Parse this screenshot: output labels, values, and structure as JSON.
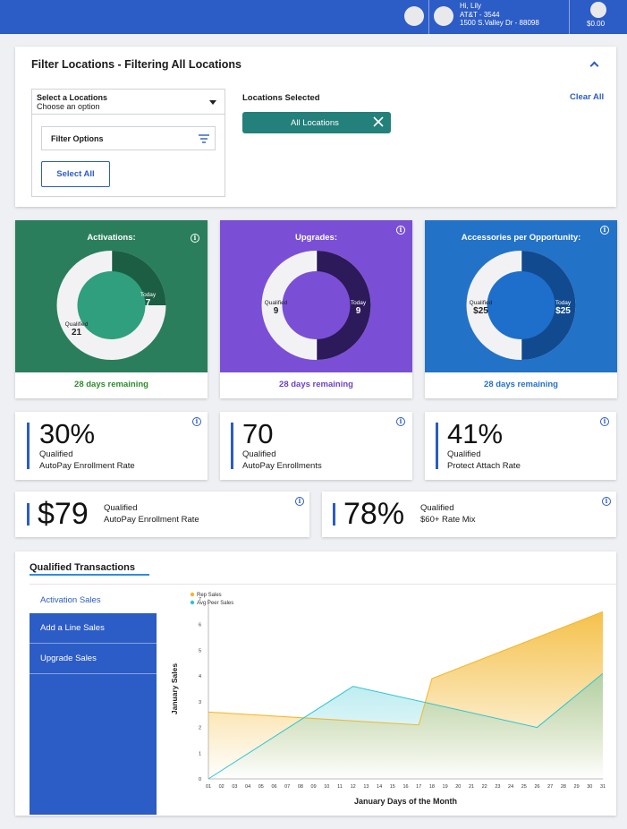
{
  "header": {
    "greeting": "Hi, Lily",
    "store_id": "AT&T - 3544",
    "address": "1500 S.Valley Dr - 88098",
    "balance": "$0.00"
  },
  "filter": {
    "title": "Filter Locations - Filtering All Locations",
    "select_label": "Select a Locations",
    "select_placeholder": "Choose an option",
    "filter_options_label": "Filter Options",
    "select_all_label": "Select All",
    "locations_selected_label": "Locations Selected",
    "clear_all_label": "Clear All",
    "chip_label": "All Locations"
  },
  "donuts": [
    {
      "title": "Activations:",
      "qualified_label": "Qualified",
      "qualified_value": "21",
      "today_label": "Today",
      "today_value": "7",
      "today_fraction": 0.25,
      "remaining": "28 days remaining",
      "bg": "#2a7e5c",
      "hole": "#2f9f7d",
      "arc": "#1b5e43",
      "remaining_color": "#2e8b2e"
    },
    {
      "title": "Upgrades:",
      "qualified_label": "Qualified",
      "qualified_value": "9",
      "today_label": "Today",
      "today_value": "9",
      "today_fraction": 0.5,
      "remaining": "28 days remaining",
      "bg": "#7a4fd6",
      "hole": "#7a4fd6",
      "arc": "#2c1a5a",
      "remaining_color": "#6a43c4"
    },
    {
      "title": "Accessories per Opportunity:",
      "qualified_label": "Qualified",
      "qualified_value": "$25",
      "today_label": "Today",
      "today_value": "$25",
      "today_fraction": 0.5,
      "remaining": "28 days remaining",
      "bg": "#2272c8",
      "hole": "#1e6ecb",
      "arc": "#114a8f",
      "remaining_color": "#2272c8"
    }
  ],
  "kpis": [
    {
      "value": "30%",
      "label1": "Qualified",
      "label2": "AutoPay Enrollment Rate"
    },
    {
      "value": "70",
      "label1": "Qualified",
      "label2": "AutoPay Enrollments"
    },
    {
      "value": "41%",
      "label1": "Qualified",
      "label2": "Protect Attach Rate"
    },
    {
      "value": "$79",
      "label1": "Qualified",
      "label2": "AutoPay Enrollment Rate"
    },
    {
      "value": "78%",
      "label1": "Qualified",
      "label2": "$60+ Rate Mix"
    }
  ],
  "transactions": {
    "title": "Qualified Transactions",
    "tabs": [
      "Activation Sales",
      "Add a Line Sales",
      "Upgrade Sales"
    ]
  },
  "chart_data": {
    "type": "area",
    "title": "",
    "xlabel": "January Days of the Month",
    "ylabel": "January Sales",
    "x": [
      "01",
      "02",
      "03",
      "04",
      "05",
      "06",
      "07",
      "08",
      "09",
      "10",
      "11",
      "12",
      "13",
      "14",
      "15",
      "16",
      "17",
      "18",
      "19",
      "20",
      "21",
      "22",
      "23",
      "24",
      "25",
      "26",
      "27",
      "28",
      "29",
      "30",
      "31"
    ],
    "ylim": [
      0,
      7
    ],
    "yticks": [
      0,
      1,
      2,
      3,
      4,
      5,
      6,
      7
    ],
    "legend": "top-left",
    "series": [
      {
        "name": "Rep Sales",
        "color": "#f3b62b",
        "points": [
          [
            1,
            2.6
          ],
          [
            17,
            2.1
          ],
          [
            18,
            3.9
          ],
          [
            31,
            6.5
          ]
        ]
      },
      {
        "name": "Avg Peer Sales",
        "color": "#2ec4d1",
        "points": [
          [
            1,
            0
          ],
          [
            12,
            3.6
          ],
          [
            26,
            2.0
          ],
          [
            31,
            4.1
          ]
        ]
      }
    ]
  }
}
